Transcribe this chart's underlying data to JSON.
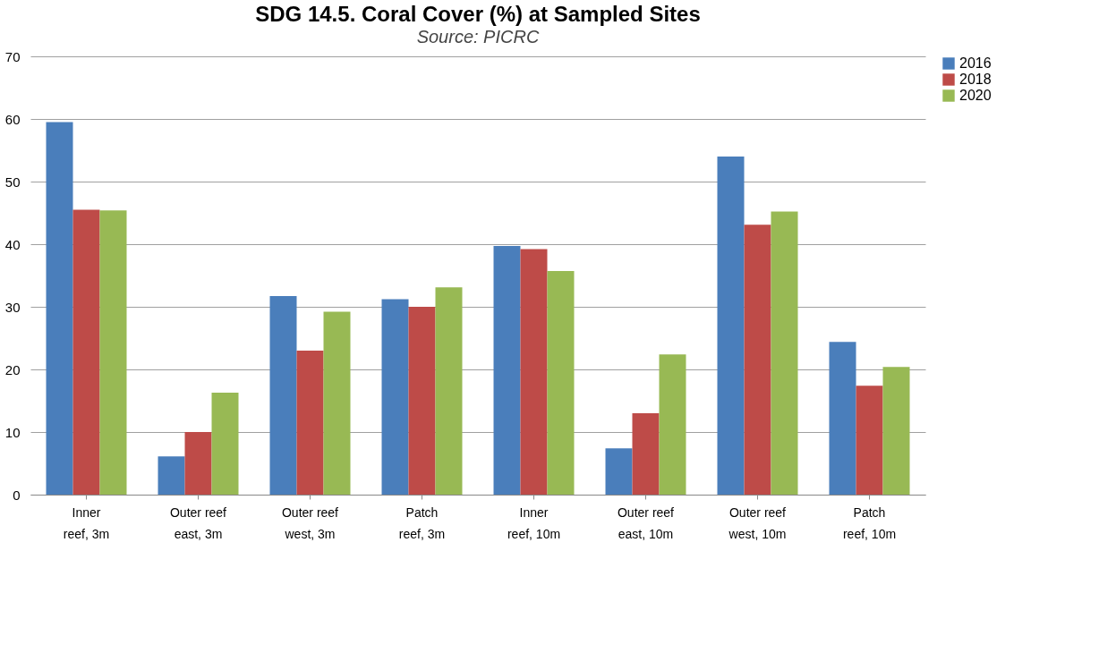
{
  "chart_data": {
    "type": "bar",
    "title": "SDG 14.5. Coral Cover (%) at Sampled Sites",
    "subtitle": "Source: PICRC",
    "categories": [
      "Inner reef, 3m",
      "Outer reef east, 3m",
      "Outer reef west, 3m",
      "Patch reef, 3m",
      "Inner reef, 10m",
      "Outer reef east, 10m",
      "Outer reef west, 10m",
      "Patch reef, 10m"
    ],
    "series": [
      {
        "name": "2016",
        "color": "#4a7ebb",
        "values": [
          59.5,
          6.1,
          31.7,
          31.2,
          39.7,
          7.4,
          54.0,
          24.4
        ]
      },
      {
        "name": "2018",
        "color": "#be4b48",
        "values": [
          45.5,
          10.0,
          23.0,
          30.0,
          39.2,
          13.0,
          43.1,
          17.4
        ]
      },
      {
        "name": "2020",
        "color": "#98b954",
        "values": [
          45.4,
          16.3,
          29.2,
          33.1,
          35.7,
          22.4,
          45.2,
          20.4
        ]
      }
    ],
    "ylim": [
      0,
      70
    ],
    "yticks": [
      0,
      10,
      20,
      30,
      40,
      50,
      60,
      70
    ],
    "grid": "y",
    "legend": "right"
  }
}
